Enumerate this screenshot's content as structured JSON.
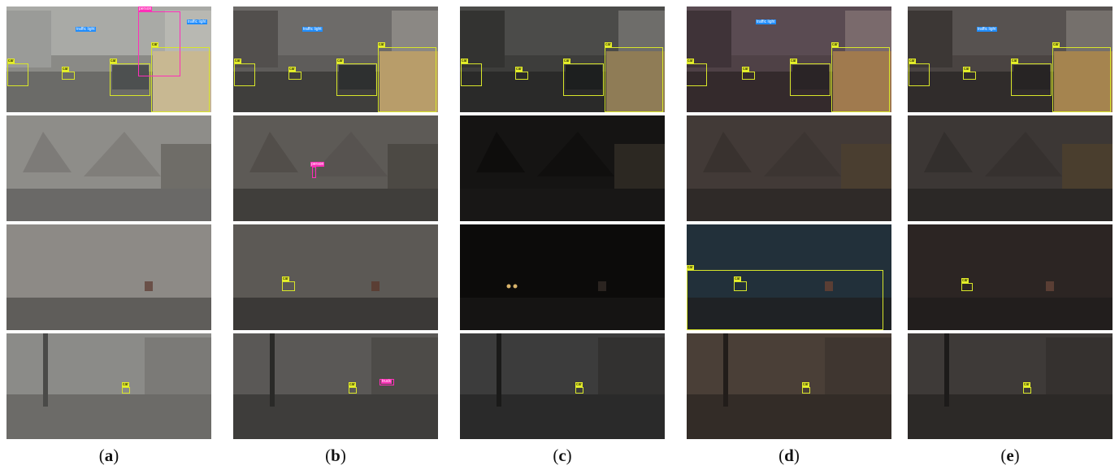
{
  "panels": [
    {
      "id": "a",
      "caption": "a"
    },
    {
      "id": "b",
      "caption": "b"
    },
    {
      "id": "c",
      "caption": "c"
    },
    {
      "id": "d",
      "caption": "d"
    },
    {
      "id": "e",
      "caption": "e"
    }
  ],
  "labels": {
    "car": "car",
    "traffic_light": "traffic light",
    "person": "person",
    "truck": "truck"
  },
  "colors": {
    "car_box": "#d8e62a",
    "traffic_light_box": "#1e8cff",
    "pink_box": "#ff2fb8"
  }
}
